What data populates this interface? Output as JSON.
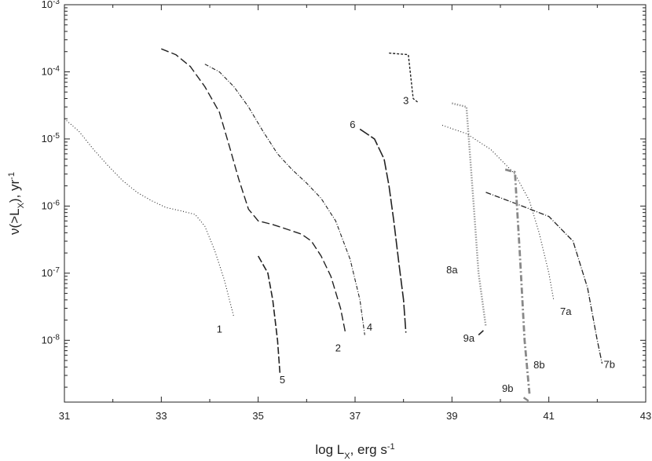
{
  "chart_data": {
    "type": "line",
    "xlabel": "log L",
    "xlabel_sub": "X",
    "xlabel_unit": ", erg s",
    "xlabel_exp": "-1",
    "ylabel": "ν(>L",
    "ylabel_sub": "X",
    "ylabel_unit": "), yr",
    "ylabel_exp": "-1",
    "xlim": [
      31,
      43
    ],
    "ylog": true,
    "ylim": [
      1.2e-09,
      0.001
    ],
    "grid": false,
    "legend": "none",
    "x_ticks": [
      {
        "value": 31,
        "label": "31"
      },
      {
        "value": 33,
        "label": "33"
      },
      {
        "value": 35,
        "label": "35"
      },
      {
        "value": 37,
        "label": "37"
      },
      {
        "value": 39,
        "label": "39"
      },
      {
        "value": 41,
        "label": "41"
      },
      {
        "value": 43,
        "label": "43"
      }
    ],
    "y_ticks": [
      {
        "value": 0.001,
        "base": "10",
        "exp": "-3"
      },
      {
        "value": 0.0001,
        "base": "10",
        "exp": "-4"
      },
      {
        "value": 1e-05,
        "base": "10",
        "exp": "-5"
      },
      {
        "value": 1e-06,
        "base": "10",
        "exp": "-6"
      },
      {
        "value": 1e-07,
        "base": "10",
        "exp": "-7"
      },
      {
        "value": 1e-08,
        "base": "10",
        "exp": "-8"
      }
    ],
    "series": [
      {
        "label": "1",
        "dash": "1,2.5",
        "color": "#222222",
        "width": 1.1,
        "label_pos": [
          34.2,
          1.3e-08
        ],
        "points": [
          [
            31,
            2e-05
          ],
          [
            31.3,
            1.3e-05
          ],
          [
            31.6,
            7e-06
          ],
          [
            31.9,
            4e-06
          ],
          [
            32.2,
            2.4e-06
          ],
          [
            32.5,
            1.6e-06
          ],
          [
            32.8,
            1.2e-06
          ],
          [
            33.1,
            9.5e-07
          ],
          [
            33.4,
            8.5e-07
          ],
          [
            33.7,
            7.5e-07
          ],
          [
            33.9,
            5e-07
          ],
          [
            34.1,
            2.2e-07
          ],
          [
            34.3,
            8e-08
          ],
          [
            34.5,
            2.2e-08
          ]
        ]
      },
      {
        "label": "2",
        "dash": "10,4",
        "color": "#222222",
        "width": 1.4,
        "label_pos": [
          36.65,
          6.8e-09
        ],
        "points": [
          [
            33,
            0.00022
          ],
          [
            33.3,
            0.00018
          ],
          [
            33.6,
            0.00012
          ],
          [
            33.9,
            6e-05
          ],
          [
            34.2,
            2.5e-05
          ],
          [
            34.4,
            8e-06
          ],
          [
            34.6,
            2.5e-06
          ],
          [
            34.8,
            9e-07
          ],
          [
            35,
            6e-07
          ],
          [
            35.3,
            5.3e-07
          ],
          [
            35.6,
            4.5e-07
          ],
          [
            35.9,
            3.8e-07
          ],
          [
            36.1,
            3e-07
          ],
          [
            36.3,
            1.8e-07
          ],
          [
            36.5,
            9e-08
          ],
          [
            36.7,
            3e-08
          ],
          [
            36.8,
            1.3e-08
          ]
        ]
      },
      {
        "label": "4",
        "dash": "5,2,1,2",
        "color": "#222222",
        "width": 1.1,
        "label_pos": [
          37.3,
          1.4e-08
        ],
        "points": [
          [
            33.9,
            0.00013
          ],
          [
            34.2,
            0.0001
          ],
          [
            34.5,
            6e-05
          ],
          [
            34.8,
            3e-05
          ],
          [
            35.1,
            1.3e-05
          ],
          [
            35.4,
            6e-06
          ],
          [
            35.7,
            3.5e-06
          ],
          [
            36,
            2.2e-06
          ],
          [
            36.3,
            1.3e-06
          ],
          [
            36.6,
            6e-07
          ],
          [
            36.9,
            1.6e-07
          ],
          [
            37.1,
            4e-08
          ],
          [
            37.2,
            1.2e-08
          ]
        ]
      },
      {
        "label": "5",
        "dash": "9,3",
        "color": "#222222",
        "width": 1.6,
        "label_pos": [
          35.5,
          2.3e-09
        ],
        "points": [
          [
            35,
            1.8e-07
          ],
          [
            35.2,
            1e-07
          ],
          [
            35.3,
            4e-08
          ],
          [
            35.4,
            1e-08
          ],
          [
            35.45,
            3.2e-09
          ]
        ]
      },
      {
        "label": "6",
        "dash": "14,3",
        "color": "#222222",
        "width": 1.6,
        "label_pos": [
          36.95,
          1.45e-05
        ],
        "points": [
          [
            37.1,
            1.4e-05
          ],
          [
            37.4,
            1e-05
          ],
          [
            37.6,
            5e-06
          ],
          [
            37.7,
            2e-06
          ],
          [
            37.8,
            6e-07
          ],
          [
            37.9,
            1.5e-07
          ],
          [
            38,
            4e-08
          ],
          [
            38.05,
            1.3e-08
          ]
        ]
      },
      {
        "label": "3",
        "dash": "3,2",
        "color": "#222222",
        "width": 1.4,
        "label_pos": [
          38.05,
          3.3e-05
        ],
        "points": [
          [
            37.7,
            0.00019
          ],
          [
            38.1,
            0.00018
          ],
          [
            38.2,
            4e-05
          ],
          [
            38.3,
            3.5e-05
          ]
        ]
      },
      {
        "label": "7a",
        "dash": "1,2.5",
        "color": "#222222",
        "width": 1.1,
        "label_pos": [
          41.35,
          2.4e-08
        ],
        "points": [
          [
            38.8,
            1.6e-05
          ],
          [
            39.3,
            1.2e-05
          ],
          [
            39.8,
            7e-06
          ],
          [
            40.3,
            3e-06
          ],
          [
            40.6,
            1.2e-06
          ],
          [
            40.8,
            4e-07
          ],
          [
            41,
            1e-07
          ],
          [
            41.1,
            4e-08
          ]
        ]
      },
      {
        "label": "7b",
        "dash": "7,2,1,2",
        "color": "#222222",
        "width": 1.3,
        "label_pos": [
          42.25,
          3.9e-09
        ],
        "points": [
          [
            39.7,
            1.6e-06
          ],
          [
            40.3,
            1.1e-06
          ],
          [
            41,
            7e-07
          ],
          [
            41.5,
            3e-07
          ],
          [
            41.8,
            6e-08
          ],
          [
            42,
            1e-08
          ],
          [
            42.1,
            4.5e-09
          ]
        ]
      },
      {
        "label": "8a",
        "dash": "1.5,1.8",
        "color": "#999999",
        "width": 2.4,
        "label_pos": [
          39,
          1e-07
        ],
        "points": [
          [
            39,
            3.4e-05
          ],
          [
            39.3,
            3e-05
          ],
          [
            39.45,
            1e-06
          ],
          [
            39.55,
            1e-07
          ],
          [
            39.7,
            1.6e-08
          ]
        ]
      },
      {
        "label": "8b",
        "dash": "8,3,2,3",
        "color": "#888888",
        "width": 2.8,
        "label_pos": [
          40.8,
          3.8e-09
        ],
        "points": [
          [
            40.1,
            3.5e-06
          ],
          [
            40.3,
            3.2e-06
          ],
          [
            40.4,
            2e-07
          ],
          [
            40.5,
            1e-08
          ],
          [
            40.6,
            1.6e-09
          ]
        ]
      },
      {
        "label": "9a",
        "dash": "",
        "color": "#222222",
        "width": 1.6,
        "label_pos": [
          39.35,
          9.6e-09
        ],
        "points": [
          [
            39.55,
            1.2e-08
          ],
          [
            39.65,
            1.4e-08
          ]
        ]
      },
      {
        "label": "9b",
        "dash": "",
        "color": "#888888",
        "width": 2.4,
        "label_pos": [
          40.15,
          1.7e-09
        ],
        "points": [
          [
            40.48,
            1.4e-09
          ],
          [
            40.58,
            1.25e-09
          ]
        ]
      }
    ]
  }
}
